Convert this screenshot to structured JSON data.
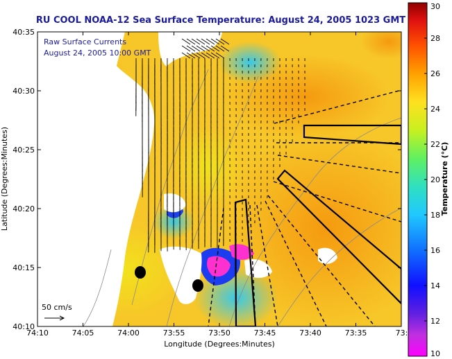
{
  "chart_data": {
    "type": "heatmap",
    "title": "RU COOL  NOAA-12  Sea Surface Temperature:  August 24, 2005 1023 GMT",
    "xlabel": "Longitude (Degrees:Minutes)",
    "ylabel": "Latitude (Degrees:Minutes)",
    "x_ticks": [
      "74:10",
      "74:05",
      "74:00",
      "73:55",
      "73:50",
      "73:45",
      "73:40",
      "73:35",
      "73:3"
    ],
    "y_ticks": [
      "40:35",
      "40:30",
      "40:25",
      "40:20",
      "40:15",
      "40:10"
    ],
    "colorbar": {
      "label": "Temperature (°C)",
      "min": 10,
      "max": 30,
      "ticks": [
        "30",
        "28",
        "26",
        "24",
        "22",
        "20",
        "18",
        "16",
        "14",
        "12",
        "10"
      ]
    },
    "annotations": {
      "line1": "Raw Surface Currents",
      "line2": "August 24, 2005 10:00 GMT",
      "scale": "50 cm/s"
    },
    "colors": {
      "land": "#ffffff",
      "warm": "#f5a21e",
      "mid": "#f0e020",
      "cool": "#38a8f0",
      "cold": "#ff30d0",
      "title": "#1a1aa0"
    }
  }
}
